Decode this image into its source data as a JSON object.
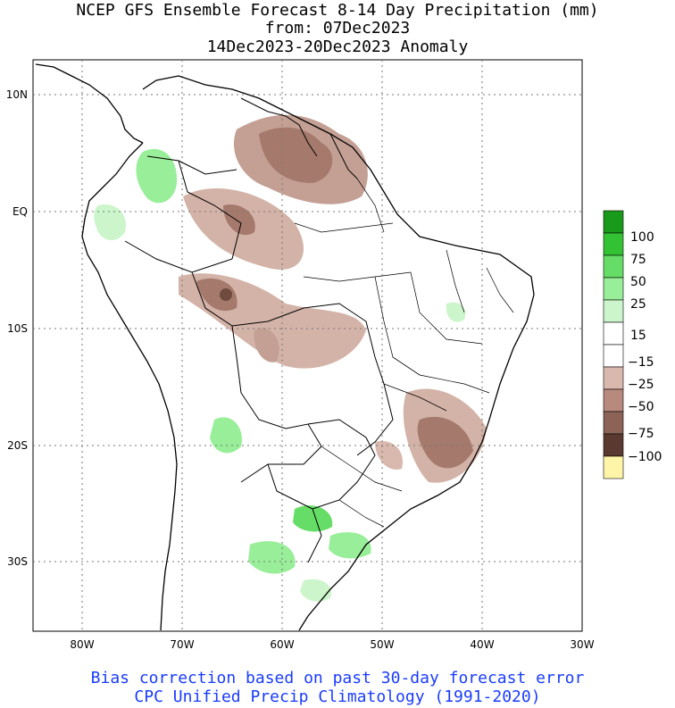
{
  "title": {
    "line1": "NCEP GFS Ensemble Forecast 8-14 Day Precipitation (mm)",
    "line2": "from: 07Dec2023",
    "line3": "14Dec2023-20Dec2023 Anomaly"
  },
  "footer": {
    "line1": "Bias correction based on past 30-day forecast error",
    "line2": "CPC Unified Precip Climatology (1991-2020)"
  },
  "map": {
    "lat_labels": [
      "10N",
      "EQ",
      "10S",
      "20S",
      "30S"
    ],
    "lon_labels": [
      "80W",
      "70W",
      "60W",
      "50W",
      "40W",
      "30W"
    ]
  },
  "legend": {
    "labels": [
      "100",
      "75",
      "50",
      "25",
      "15",
      "−15",
      "−25",
      "−50",
      "−75",
      "−100"
    ],
    "colors": [
      "#1a9a1a",
      "#33c233",
      "#66dd66",
      "#99ee99",
      "#ccf5cc",
      "#ffffff",
      "#d9b8ad",
      "#b88a7d",
      "#8c6356",
      "#5a3a30",
      "#fff5a8"
    ]
  }
}
